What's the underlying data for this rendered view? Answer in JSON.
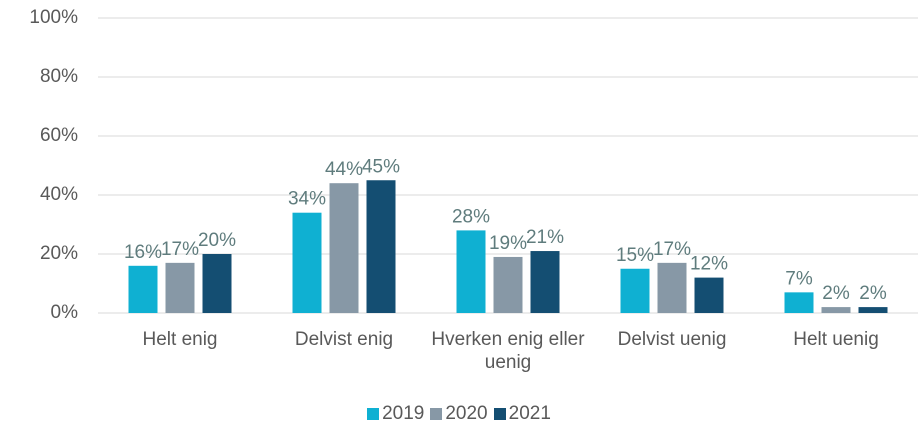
{
  "chart_data": {
    "type": "bar",
    "categories": [
      "Helt enig",
      "Delvist enig",
      "Hverken enig eller uenig",
      "Delvist uenig",
      "Helt uenig"
    ],
    "series": [
      {
        "name": "2019",
        "color": "#0fb0d2",
        "values": [
          16,
          34,
          28,
          15,
          7
        ],
        "value_labels": [
          "16%",
          "34%",
          "28%",
          "15%",
          "7%"
        ]
      },
      {
        "name": "2020",
        "color": "#8798a6",
        "values": [
          17,
          44,
          19,
          17,
          2
        ],
        "value_labels": [
          "17%",
          "44%",
          "19%",
          "17%",
          "2%"
        ]
      },
      {
        "name": "2021",
        "color": "#144e72",
        "values": [
          20,
          45,
          21,
          12,
          2
        ],
        "value_labels": [
          "20%",
          "45%",
          "21%",
          "12%",
          "2%"
        ]
      }
    ],
    "ylim": [
      0,
      100
    ],
    "yticks": [
      {
        "value": 0,
        "label": "0%"
      },
      {
        "value": 20,
        "label": "20%"
      },
      {
        "value": 40,
        "label": "40%"
      },
      {
        "value": 60,
        "label": "60%"
      },
      {
        "value": 80,
        "label": "80%"
      },
      {
        "value": 100,
        "label": "100%"
      }
    ],
    "grid": true,
    "legend": "bottom"
  }
}
